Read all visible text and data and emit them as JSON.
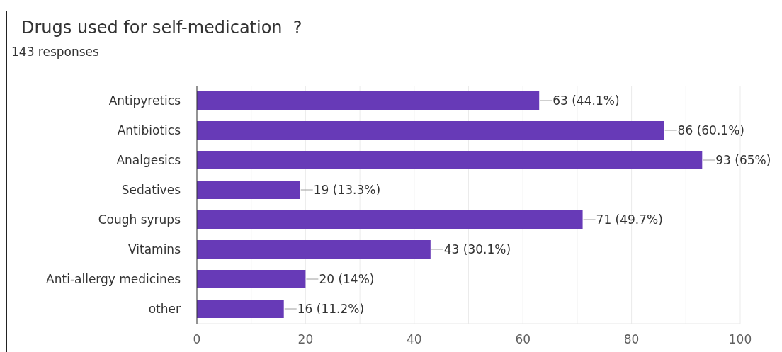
{
  "chart_data": {
    "type": "bar",
    "orientation": "horizontal",
    "title": "Drugs used for self-medication  ?",
    "subtitle": "143 responses",
    "categories": [
      "Antipyretics",
      "Antibiotics",
      "Analgesics",
      "Sedatives",
      "Cough syrups",
      "Vitamins",
      "Anti-allergy medicines",
      "other"
    ],
    "values": [
      63,
      86,
      93,
      19,
      71,
      43,
      20,
      16
    ],
    "value_labels": [
      "63 (44.1%)",
      "86 (60.1%)",
      "93 (65%)",
      "19 (13.3%)",
      "71 (49.7%)",
      "43 (30.1%)",
      "20 (14%)",
      "16 (11.2%)"
    ],
    "color": "#673ab7",
    "xlim": [
      0,
      100
    ],
    "xticks": [
      0,
      {
        "value": 10,
        "label": null
      },
      20,
      {
        "value": 30,
        "label": null
      },
      40,
      {
        "value": 50,
        "label": null
      },
      60,
      {
        "value": 70,
        "label": null
      },
      80,
      {
        "value": 90,
        "label": null
      },
      100
    ],
    "grid": "x"
  }
}
